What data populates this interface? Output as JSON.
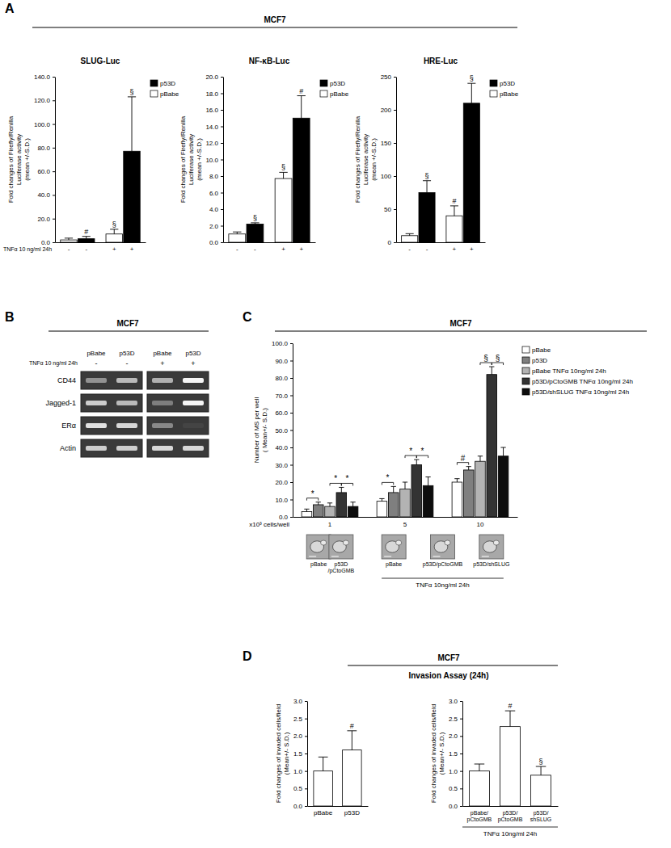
{
  "panels": [
    {
      "label": "A",
      "header": "MCF7"
    },
    {
      "label": "B",
      "header": "MCF7"
    },
    {
      "label": "C",
      "header": "MCF7"
    },
    {
      "label": "D",
      "header": "MCF7",
      "subheader": "Invasion Assay (24h)"
    }
  ],
  "gel": {
    "lanes": [
      "pBabe",
      "p53D",
      "pBabe",
      "p53D"
    ],
    "condition_label": "TNFα 10 ng/ml 24h",
    "condition": [
      "-",
      "-",
      "+",
      "+"
    ],
    "rows": [
      {
        "name": "CD44",
        "intensity": [
          0.45,
          0.65,
          0.6,
          0.95
        ]
      },
      {
        "name": "Jagged-1",
        "intensity": [
          0.75,
          0.65,
          0.35,
          0.95
        ]
      },
      {
        "name": "ERα",
        "intensity": [
          0.85,
          0.8,
          0.4,
          0.05
        ]
      },
      {
        "name": "Actin",
        "intensity": [
          0.75,
          0.75,
          0.8,
          0.8
        ]
      }
    ]
  },
  "chart_data": [
    {
      "type": "bar",
      "title": "SLUG-Luc",
      "y_label": [
        "Fold changes of Firefly/Renilla",
        "Luciferase activity",
        "(mean +/-S.D.)"
      ],
      "condition_label": "TNFα 10 ng/ml 24h",
      "categories": [
        "-",
        "+"
      ],
      "series": [
        {
          "name": "pBabe",
          "color": "#ffffff",
          "values": [
            2.0,
            7.0
          ],
          "errors": [
            1.5,
            4.0
          ],
          "annotations": [
            null,
            "§"
          ]
        },
        {
          "name": "p53D",
          "color": "#000000",
          "values": [
            3.0,
            77.0
          ],
          "errors": [
            2.0,
            46.0
          ],
          "annotations": [
            "#",
            "§"
          ]
        }
      ],
      "ylim": [
        0,
        140
      ],
      "yticks": [
        {
          "value": 0,
          "label": "0.0"
        },
        {
          "value": 20,
          "label": "20.0"
        },
        {
          "value": 40,
          "label": "40.0"
        },
        {
          "value": 60,
          "label": "60.0"
        },
        {
          "value": 80,
          "label": "80.0"
        },
        {
          "value": 100,
          "label": "100.0"
        },
        {
          "value": 120,
          "label": "120.0"
        },
        {
          "value": 140,
          "label": "140.0"
        }
      ],
      "legend": "right"
    },
    {
      "type": "bar",
      "title": "NF-κB-Luc",
      "y_label": [
        "Fold changes of Firefly/Renilla",
        "Luciferase activity",
        "(mean +/-S.D.)"
      ],
      "categories": [
        "-",
        "+"
      ],
      "series": [
        {
          "name": "pBabe",
          "color": "#ffffff",
          "values": [
            1.0,
            7.7
          ],
          "errors": [
            0.25,
            0.75
          ],
          "annotations": [
            null,
            "§"
          ]
        },
        {
          "name": "p53D",
          "color": "#000000",
          "values": [
            2.2,
            15.0
          ],
          "errors": [
            0.15,
            2.7
          ],
          "annotations": [
            "§",
            "#"
          ]
        }
      ],
      "ylim": [
        0,
        20
      ],
      "yticks": [
        {
          "value": 0,
          "label": "0.0"
        },
        {
          "value": 2,
          "label": "2.0"
        },
        {
          "value": 4,
          "label": "4.0"
        },
        {
          "value": 6,
          "label": "6.0"
        },
        {
          "value": 8,
          "label": "8.0"
        },
        {
          "value": 10,
          "label": "10.0"
        },
        {
          "value": 12,
          "label": "12.0"
        },
        {
          "value": 14,
          "label": "14.0"
        },
        {
          "value": 16,
          "label": "16.0"
        },
        {
          "value": 18,
          "label": "18.0"
        },
        {
          "value": 20,
          "label": "20.0"
        }
      ],
      "legend": "right"
    },
    {
      "type": "bar",
      "title": "HRE-Luc",
      "y_label": [
        "Fold changes of Firefly/Renilla",
        "Luciferase activity",
        "(mean +/-S.D.)"
      ],
      "categories": [
        "-",
        "+"
      ],
      "series": [
        {
          "name": "pBabe",
          "color": "#ffffff",
          "values": [
            10,
            40
          ],
          "errors": [
            3,
            15
          ],
          "annotations": [
            null,
            "#"
          ]
        },
        {
          "name": "p53D",
          "color": "#000000",
          "values": [
            75,
            210
          ],
          "errors": [
            18,
            30
          ],
          "annotations": [
            "§",
            "§"
          ]
        }
      ],
      "ylim": [
        0,
        250
      ],
      "yticks": [
        0,
        50,
        100,
        150,
        200,
        250
      ],
      "legend": "right"
    },
    {
      "type": "bar",
      "y_label": [
        "Number of MS per well",
        "( Mean+/- S.D.)"
      ],
      "x_label": "x10³ cells/well",
      "categories": [
        "1",
        "5",
        "10"
      ],
      "series": [
        {
          "name": "pBabe",
          "color": "#ffffff",
          "values": [
            3,
            9,
            20
          ],
          "errors": [
            1.5,
            1.5,
            2
          ]
        },
        {
          "name": "p53D",
          "color": "#7f7f7f",
          "values": [
            7,
            14,
            27
          ],
          "errors": [
            1.5,
            3.5,
            2
          ]
        },
        {
          "name": "pBabe TNFα 10ng/ml 24h",
          "color": "#b3b3b3",
          "values": [
            6,
            16,
            32
          ],
          "errors": [
            2,
            4,
            3
          ]
        },
        {
          "name": "p53D/pCtoGMB TNFα 10ng/ml 24h",
          "color": "#333333",
          "values": [
            14,
            30,
            82
          ],
          "errors": [
            3,
            3,
            4.5
          ]
        },
        {
          "name": "p53D/shSLUG TNFα 10ng/ml 24h",
          "color": "#0d0d0d",
          "values": [
            6,
            18,
            35
          ],
          "errors": [
            2.5,
            5,
            5
          ]
        }
      ],
      "brackets": [
        {
          "text": "*",
          "category": 0,
          "series": [
            0,
            1
          ]
        },
        {
          "text": "*",
          "category": 0,
          "series": [
            2,
            3
          ]
        },
        {
          "text": "*",
          "category": 0,
          "series": [
            3,
            4
          ]
        },
        {
          "text": "*",
          "category": 1,
          "series": [
            0,
            1
          ]
        },
        {
          "text": "*",
          "category": 1,
          "series": [
            2,
            3
          ]
        },
        {
          "text": "*",
          "category": 1,
          "series": [
            3,
            4
          ]
        },
        {
          "text": "#",
          "category": 2,
          "series": [
            0,
            1
          ]
        },
        {
          "text": "§",
          "category": 2,
          "series": [
            2,
            3
          ]
        },
        {
          "text": "§",
          "category": 2,
          "series": [
            3,
            4
          ]
        }
      ],
      "image_groups": [
        {
          "images": [
            "pBabe",
            "p53D\n/pCtoGMB"
          ]
        },
        {
          "images": [
            "pBabe",
            "p53D/pCtoGMB",
            "p53D/shSLUG"
          ],
          "label": "TNFα 10ng/ml 24h"
        }
      ],
      "ylim": [
        0,
        100
      ],
      "yticks": [
        {
          "value": 0,
          "label": "0.0"
        },
        {
          "value": 10,
          "label": "10.0"
        },
        {
          "value": 20,
          "label": "20.0"
        },
        {
          "value": 30,
          "label": "30.0"
        },
        {
          "value": 40,
          "label": "40.0"
        },
        {
          "value": 50,
          "label": "50.0"
        },
        {
          "value": 60,
          "label": "60.0"
        },
        {
          "value": 70,
          "label": "70.0"
        },
        {
          "value": 80,
          "label": "80.0"
        },
        {
          "value": 90,
          "label": "90.0"
        },
        {
          "value": 100,
          "label": "100.0"
        }
      ],
      "legend": "right"
    },
    {
      "type": "bar",
      "y_label": [
        "Fold changes of invaded cells/field",
        "(Mean+/- S.D.)"
      ],
      "categories": [
        "pBabe",
        "p53D"
      ],
      "values": [
        1.0,
        1.6
      ],
      "errors": [
        0.4,
        0.55
      ],
      "annotations": [
        null,
        "#"
      ],
      "color": "#ffffff",
      "ylim": [
        0,
        3
      ],
      "yticks": [
        {
          "value": 0,
          "label": "0.0"
        },
        {
          "value": 0.5,
          "label": "0.5"
        },
        {
          "value": 1,
          "label": "1.0"
        },
        {
          "value": 1.5,
          "label": "1.5"
        },
        {
          "value": 2,
          "label": "2.0"
        },
        {
          "value": 2.5,
          "label": "2.5"
        },
        {
          "value": 3,
          "label": "3.0"
        }
      ]
    },
    {
      "type": "bar",
      "y_label": [
        "Fold changes of invaded cells/field",
        "(Mean+/- S.D.)"
      ],
      "condition_label": "TNFα 10ng/ml 24h",
      "categories": [
        "pBabe/\npCtoGMB",
        "p53D/\npCtoGMB",
        "p53D/\nshSLUG"
      ],
      "values": [
        1.0,
        2.27,
        0.88
      ],
      "errors": [
        0.2,
        0.45,
        0.25
      ],
      "annotations": [
        null,
        "#",
        "§"
      ],
      "color": "#ffffff",
      "ylim": [
        0,
        3
      ],
      "yticks": [
        {
          "value": 0,
          "label": "0.0"
        },
        {
          "value": 0.5,
          "label": "0.5"
        },
        {
          "value": 1,
          "label": "1.0"
        },
        {
          "value": 1.5,
          "label": "1.5"
        },
        {
          "value": 2,
          "label": "2.0"
        },
        {
          "value": 2.5,
          "label": "2.5"
        },
        {
          "value": 3,
          "label": "3.0"
        }
      ]
    }
  ]
}
